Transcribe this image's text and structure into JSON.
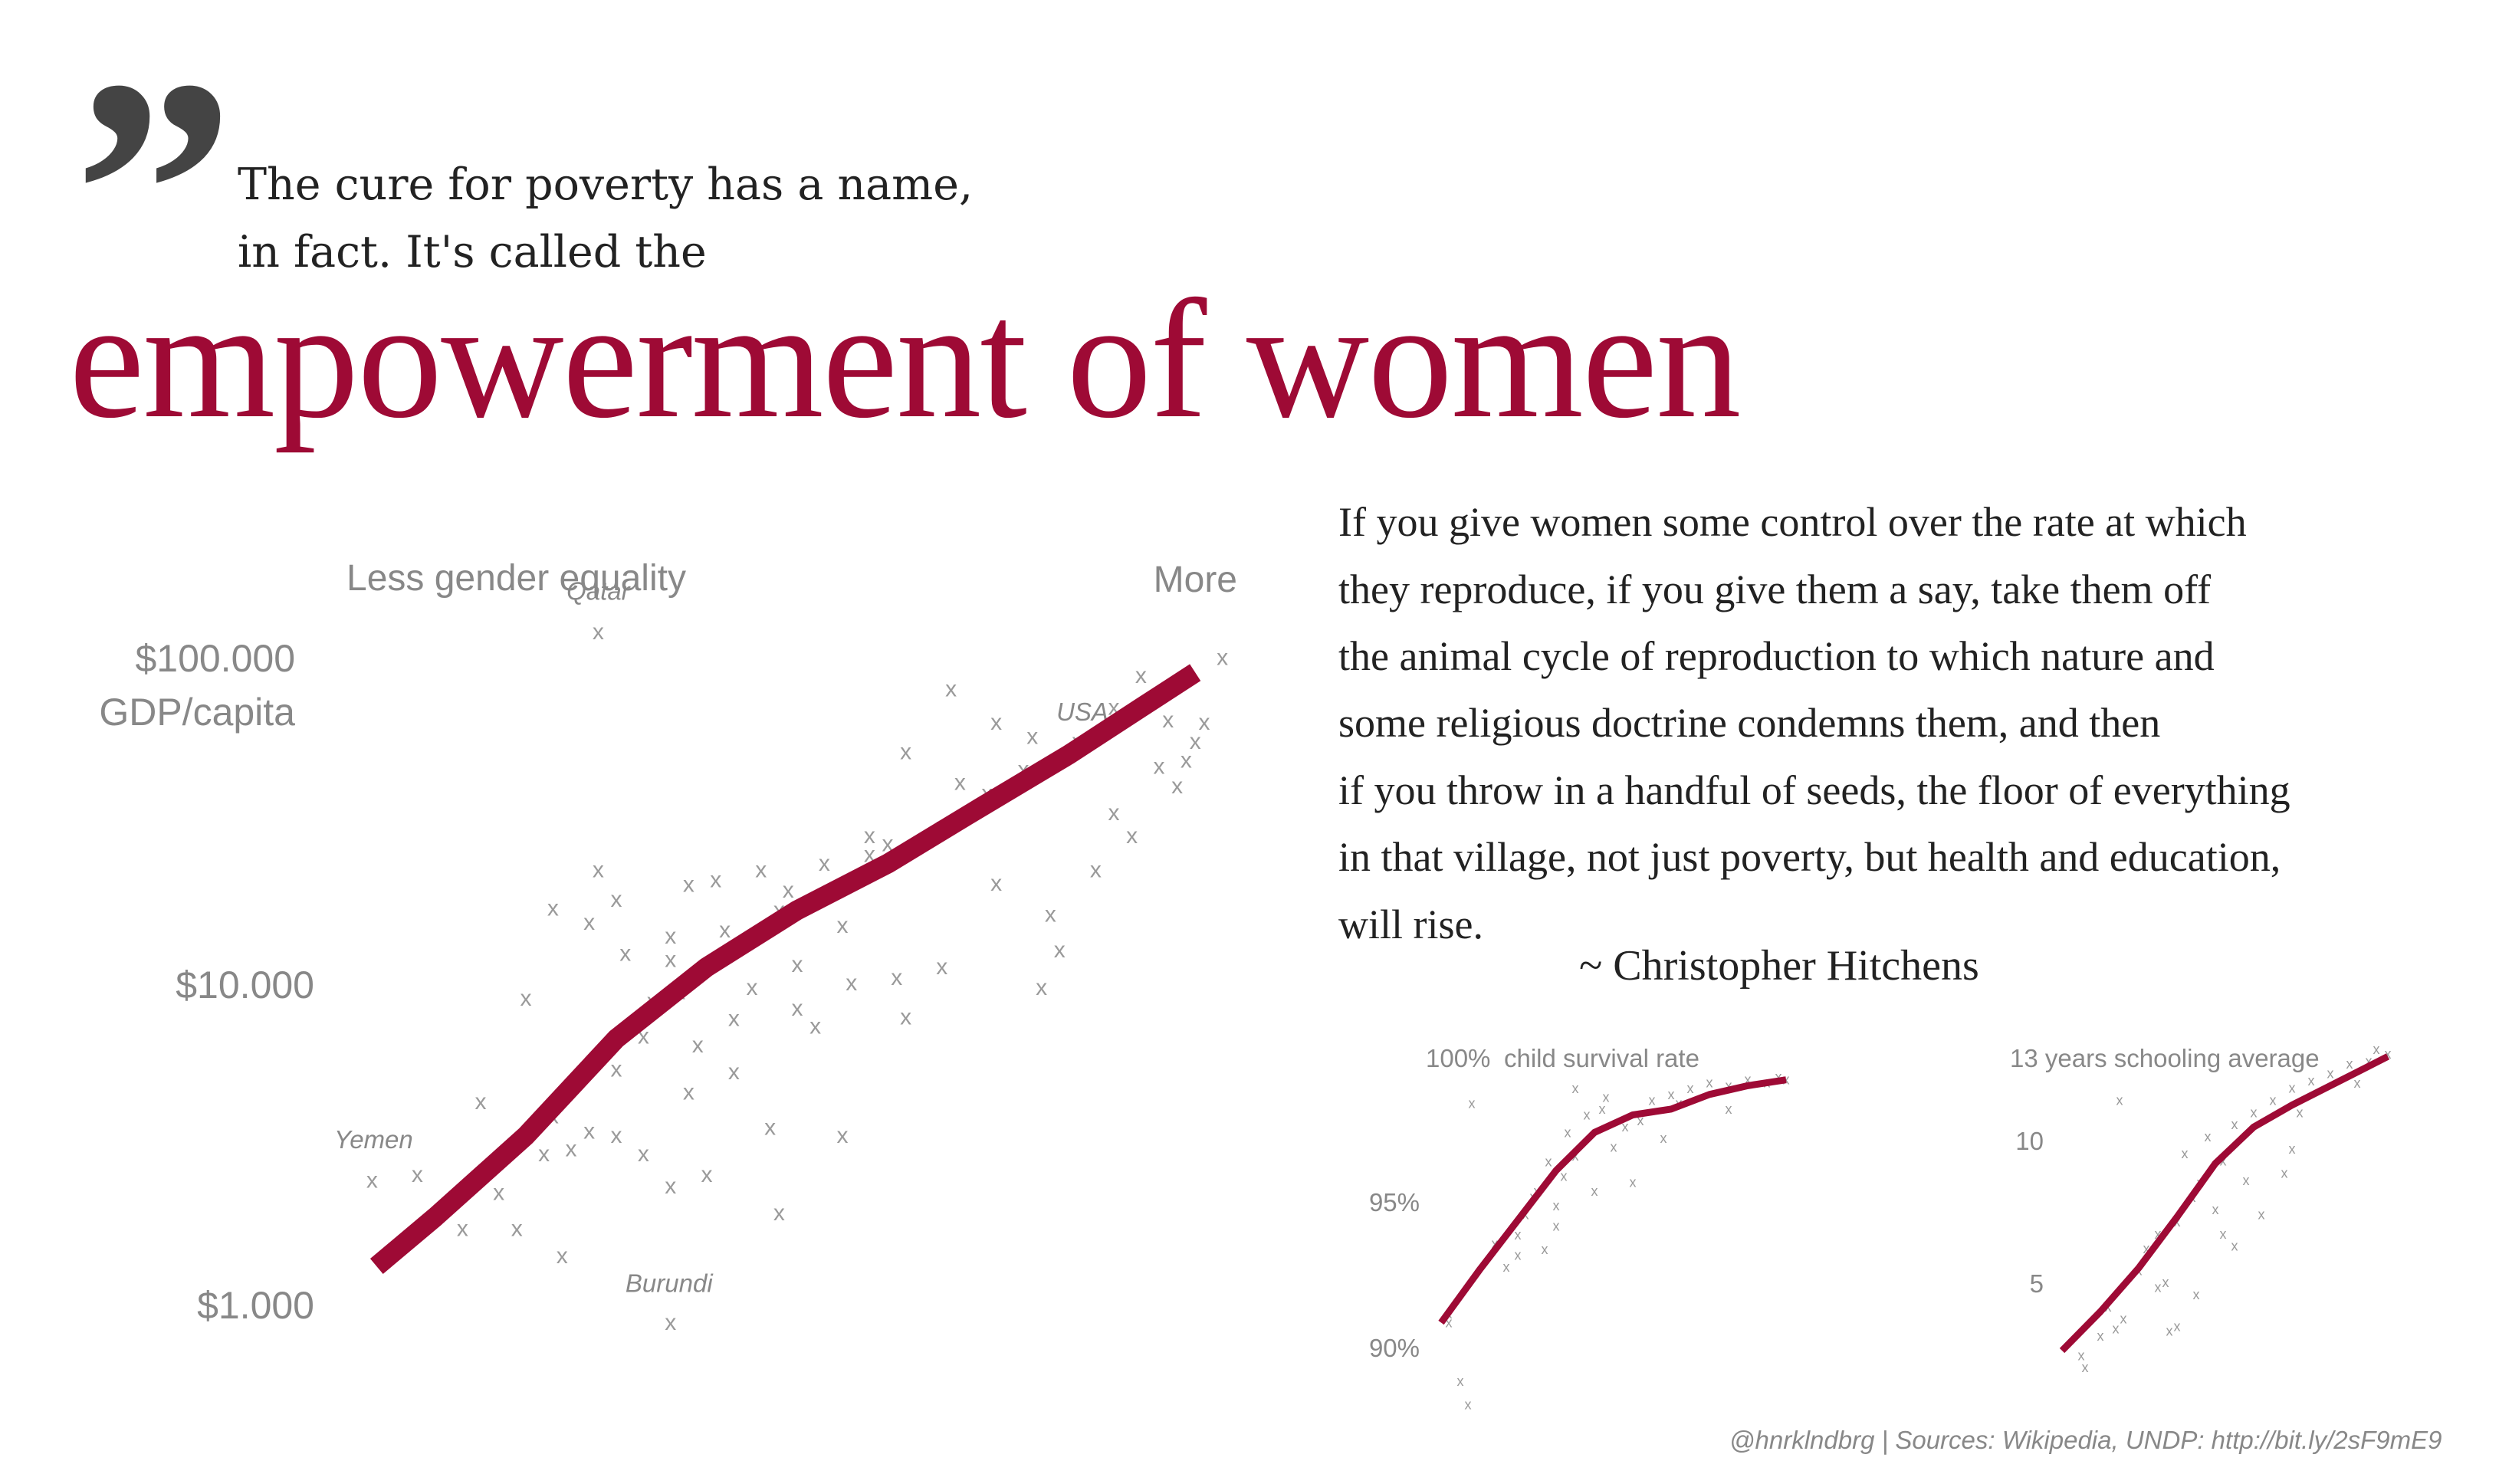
{
  "quote_mark": "”",
  "intro": {
    "line1": "The cure for poverty has a name,",
    "line2": "in fact. It's called the"
  },
  "headline": "empowerment of women",
  "quote": {
    "lines": [
      "If you give women some control over the rate at which",
      "they reproduce, if you give them a say, take them off",
      "the animal cycle of reproduction to which nature and",
      "some religious doctrine condemns them, and then",
      "if you throw in a handful of seeds, the floor of everything",
      "in that village, not just poverty, but health and education,",
      "will rise."
    ],
    "attribution": "~ Christopher Hitchens"
  },
  "footer": "@hnrklndbrg | Sources: Wikipedia, UNDP: http://bit.ly/2sF9mE9",
  "colors": {
    "accent": "#9e0a35",
    "marker": "#9a9a9a",
    "muted_text": "#888888"
  },
  "chart_data": [
    {
      "type": "scatter",
      "marker": "x",
      "x_label_left": "Less gender equality",
      "x_label_right": "More",
      "y_label": "GDP/capita",
      "y_scale": "log",
      "y_ticks": [
        "$100.000",
        "$10.000",
        "$1.000"
      ],
      "y_tick_values": [
        100000,
        10000,
        1000
      ],
      "xlim": [
        0,
        1
      ],
      "annotations": [
        {
          "label": "Qatar",
          "x": 0.28,
          "y": 120000
        },
        {
          "label": "USA",
          "x": 0.8,
          "y": 53000
        },
        {
          "label": "Yemen",
          "x": 0.03,
          "y": 2400
        },
        {
          "label": "Burundi",
          "x": 0.36,
          "y": 870
        }
      ],
      "trend": [
        [
          0.035,
          1300
        ],
        [
          0.1,
          1850
        ],
        [
          0.2,
          3300
        ],
        [
          0.3,
          6600
        ],
        [
          0.4,
          11000
        ],
        [
          0.5,
          16500
        ],
        [
          0.6,
          23000
        ],
        [
          0.7,
          34000
        ],
        [
          0.8,
          50000
        ],
        [
          0.88,
          70000
        ],
        [
          0.94,
          90000
        ]
      ],
      "points": [
        [
          0.28,
          120000
        ],
        [
          0.81,
          55000
        ],
        [
          0.03,
          2400
        ],
        [
          0.36,
          870
        ],
        [
          0.08,
          2500
        ],
        [
          0.1,
          1900
        ],
        [
          0.13,
          1700
        ],
        [
          0.17,
          2200
        ],
        [
          0.19,
          1700
        ],
        [
          0.24,
          1400
        ],
        [
          0.22,
          2900
        ],
        [
          0.25,
          3000
        ],
        [
          0.27,
          3400
        ],
        [
          0.3,
          3300
        ],
        [
          0.33,
          2900
        ],
        [
          0.36,
          2300
        ],
        [
          0.4,
          2500
        ],
        [
          0.48,
          1900
        ],
        [
          0.55,
          3300
        ],
        [
          0.47,
          3500
        ],
        [
          0.38,
          4500
        ],
        [
          0.43,
          5200
        ],
        [
          0.15,
          4200
        ],
        [
          0.23,
          3800
        ],
        [
          0.2,
          8800
        ],
        [
          0.3,
          5300
        ],
        [
          0.33,
          6700
        ],
        [
          0.39,
          6300
        ],
        [
          0.34,
          8600
        ],
        [
          0.37,
          9200
        ],
        [
          0.43,
          7600
        ],
        [
          0.45,
          9500
        ],
        [
          0.5,
          11200
        ],
        [
          0.52,
          7200
        ],
        [
          0.56,
          9800
        ],
        [
          0.62,
          7700
        ],
        [
          0.61,
          10200
        ],
        [
          0.55,
          14800
        ],
        [
          0.48,
          16500
        ],
        [
          0.42,
          14300
        ],
        [
          0.36,
          13700
        ],
        [
          0.31,
          12100
        ],
        [
          0.27,
          15100
        ],
        [
          0.36,
          11600
        ],
        [
          0.49,
          19000
        ],
        [
          0.53,
          23000
        ],
        [
          0.58,
          24500
        ],
        [
          0.6,
          26500
        ],
        [
          0.66,
          30000
        ],
        [
          0.71,
          38000
        ],
        [
          0.75,
          45000
        ],
        [
          0.68,
          41000
        ],
        [
          0.62,
          51000
        ],
        [
          0.58,
          28000
        ],
        [
          0.76,
          57000
        ],
        [
          0.85,
          70000
        ],
        [
          0.91,
          80000
        ],
        [
          0.88,
          88000
        ],
        [
          0.94,
          55000
        ],
        [
          0.95,
          63000
        ],
        [
          0.97,
          100000
        ],
        [
          0.72,
          20000
        ],
        [
          0.78,
          16000
        ],
        [
          0.85,
          33000
        ],
        [
          0.9,
          46000
        ],
        [
          0.92,
          40000
        ],
        [
          0.79,
          12400
        ],
        [
          0.77,
          9500
        ],
        [
          0.83,
          22000
        ],
        [
          0.87,
          28000
        ],
        [
          0.66,
          11000
        ],
        [
          0.5,
          8200
        ],
        [
          0.23,
          16700
        ],
        [
          0.3,
          17800
        ],
        [
          0.46,
          22000
        ],
        [
          0.38,
          19800
        ],
        [
          0.41,
          20500
        ],
        [
          0.67,
          80000
        ],
        [
          0.72,
          63000
        ],
        [
          0.91,
          64000
        ],
        [
          0.93,
          48000
        ],
        [
          0.28,
          22000
        ]
      ]
    },
    {
      "type": "scatter",
      "marker": "x",
      "y_label": "child survival rate",
      "y_ticks": [
        "100%",
        "95%",
        "90%"
      ],
      "y_tick_values": [
        100,
        95,
        90
      ],
      "ylim": [
        88.5,
        100.5
      ],
      "xlim": [
        0,
        1
      ],
      "trend": [
        [
          0.0,
          91.5
        ],
        [
          0.1,
          93.3
        ],
        [
          0.2,
          95.0
        ],
        [
          0.3,
          96.7
        ],
        [
          0.4,
          98.0
        ],
        [
          0.5,
          98.6
        ],
        [
          0.6,
          98.8
        ],
        [
          0.7,
          99.3
        ],
        [
          0.8,
          99.6
        ],
        [
          0.9,
          99.8
        ]
      ],
      "points": [
        [
          0.02,
          91.8
        ],
        [
          0.02,
          91.5
        ],
        [
          0.05,
          89.5
        ],
        [
          0.07,
          88.7
        ],
        [
          0.08,
          99.0
        ],
        [
          0.14,
          94.2
        ],
        [
          0.17,
          93.4
        ],
        [
          0.2,
          94.5
        ],
        [
          0.22,
          95.2
        ],
        [
          0.25,
          96.0
        ],
        [
          0.28,
          97.0
        ],
        [
          0.3,
          95.5
        ],
        [
          0.33,
          98.0
        ],
        [
          0.35,
          97.2
        ],
        [
          0.38,
          98.6
        ],
        [
          0.42,
          98.8
        ],
        [
          0.45,
          97.5
        ],
        [
          0.5,
          96.3
        ],
        [
          0.52,
          98.4
        ],
        [
          0.55,
          99.1
        ],
        [
          0.6,
          99.3
        ],
        [
          0.65,
          99.5
        ],
        [
          0.7,
          99.7
        ],
        [
          0.75,
          99.6
        ],
        [
          0.8,
          99.8
        ],
        [
          0.85,
          99.7
        ],
        [
          0.88,
          99.9
        ],
        [
          0.9,
          99.8
        ],
        [
          0.4,
          96.0
        ],
        [
          0.3,
          94.8
        ],
        [
          0.24,
          95.8
        ],
        [
          0.35,
          99.5
        ],
        [
          0.48,
          98.2
        ],
        [
          0.58,
          97.8
        ],
        [
          0.27,
          94.0
        ],
        [
          0.32,
          96.5
        ],
        [
          0.43,
          99.2
        ],
        [
          0.62,
          99.0
        ],
        [
          0.75,
          98.8
        ],
        [
          0.2,
          93.8
        ]
      ]
    },
    {
      "type": "scatter",
      "marker": "x",
      "y_label": "13 years schooling average",
      "y_ticks": [
        "10",
        "5"
      ],
      "y_tick_values": [
        10,
        5
      ],
      "ylim": [
        0,
        13.5
      ],
      "xlim": [
        0,
        1
      ],
      "trend": [
        [
          0.0,
          1.2
        ],
        [
          0.1,
          2.8
        ],
        [
          0.2,
          4.6
        ],
        [
          0.3,
          6.7
        ],
        [
          0.4,
          8.9
        ],
        [
          0.5,
          10.4
        ],
        [
          0.6,
          11.3
        ],
        [
          0.7,
          12.1
        ],
        [
          0.8,
          12.9
        ],
        [
          0.85,
          13.3
        ]
      ],
      "points": [
        [
          0.05,
          1.0
        ],
        [
          0.06,
          0.5
        ],
        [
          0.1,
          1.8
        ],
        [
          0.12,
          3.0
        ],
        [
          0.14,
          2.1
        ],
        [
          0.16,
          2.5
        ],
        [
          0.15,
          11.5
        ],
        [
          0.2,
          4.5
        ],
        [
          0.22,
          5.4
        ],
        [
          0.25,
          6.0
        ],
        [
          0.27,
          4.0
        ],
        [
          0.3,
          6.5
        ],
        [
          0.32,
          9.3
        ],
        [
          0.34,
          7.5
        ],
        [
          0.36,
          8.1
        ],
        [
          0.38,
          10.0
        ],
        [
          0.4,
          7.0
        ],
        [
          0.42,
          6.0
        ],
        [
          0.45,
          10.5
        ],
        [
          0.5,
          11.0
        ],
        [
          0.55,
          11.5
        ],
        [
          0.6,
          12.0
        ],
        [
          0.62,
          11.0
        ],
        [
          0.65,
          12.3
        ],
        [
          0.7,
          12.6
        ],
        [
          0.75,
          13.0
        ],
        [
          0.8,
          13.1
        ],
        [
          0.85,
          13.4
        ],
        [
          0.82,
          13.6
        ],
        [
          0.77,
          12.2
        ],
        [
          0.28,
          2.0
        ],
        [
          0.35,
          3.5
        ],
        [
          0.45,
          5.5
        ],
        [
          0.48,
          8.2
        ],
        [
          0.52,
          6.8
        ],
        [
          0.58,
          8.5
        ],
        [
          0.25,
          3.8
        ],
        [
          0.3,
          2.2
        ],
        [
          0.6,
          9.5
        ],
        [
          0.42,
          9.0
        ]
      ]
    }
  ]
}
